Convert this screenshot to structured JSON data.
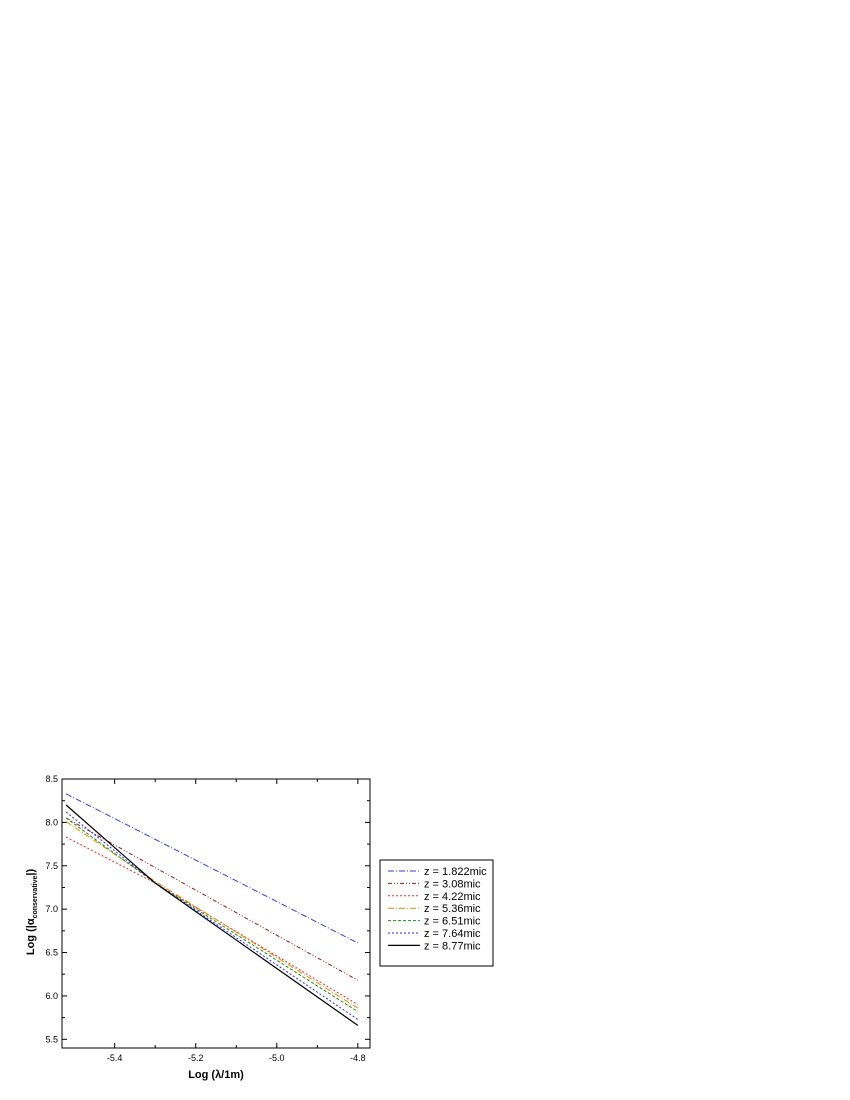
{
  "chart_data": {
    "type": "line",
    "xlabel": "Log (λ/1m)",
    "ylabel": {
      "prefix": "Log (|α",
      "subscript": "conservative",
      "suffix": "|)"
    },
    "xlim": [
      -5.53,
      -4.77
    ],
    "ylim": [
      5.4,
      8.5
    ],
    "xticks": [
      -5.4,
      -5.2,
      -5.0,
      -4.8
    ],
    "xtick_labels": [
      "-5.4",
      "-5.2",
      "-5.0",
      "-4.8"
    ],
    "yticks": [
      5.5,
      6.0,
      6.5,
      7.0,
      7.5,
      8.0,
      8.5
    ],
    "ytick_labels": [
      "5.5",
      "6.0",
      "6.5",
      "7.0",
      "7.5",
      "8.0",
      "8.5"
    ],
    "grid": false,
    "legend_position": "right",
    "series": [
      {
        "name": "z = 1.822mic",
        "color": "#3b3bd6",
        "dash": "6 2 1 2",
        "x": [
          -5.52,
          -4.8
        ],
        "y": [
          8.33,
          6.61
        ]
      },
      {
        "name": "z = 3.08mic",
        "color": "#8b1a1a",
        "dash": "4 2 1 2 1 2",
        "x": [
          -5.52,
          -4.8
        ],
        "y": [
          8.05,
          6.18
        ]
      },
      {
        "name": "z = 4.22mic",
        "color": "#e03030",
        "dash": "2 2",
        "x": [
          -5.52,
          -5.3,
          -4.8
        ],
        "y": [
          7.83,
          7.3,
          5.9
        ]
      },
      {
        "name": "z = 5.36mic",
        "color": "#e08a00",
        "dash": "6 2 1 2",
        "x": [
          -5.52,
          -5.3,
          -4.8
        ],
        "y": [
          8.01,
          7.32,
          5.86
        ]
      },
      {
        "name": "z = 6.51mic",
        "color": "#1a8a1a",
        "dash": "3 2",
        "x": [
          -5.52,
          -5.3,
          -4.8
        ],
        "y": [
          8.05,
          7.3,
          5.82
        ]
      },
      {
        "name": "z = 7.64mic",
        "color": "#2a2aff",
        "dash": "2 2",
        "x": [
          -5.52,
          -5.3,
          -4.8
        ],
        "y": [
          8.12,
          7.3,
          5.73
        ]
      },
      {
        "name": "z = 8.77mic",
        "color": "#000000",
        "dash": "",
        "x": [
          -5.52,
          -5.3,
          -4.8
        ],
        "y": [
          8.2,
          7.3,
          5.66
        ]
      }
    ]
  }
}
